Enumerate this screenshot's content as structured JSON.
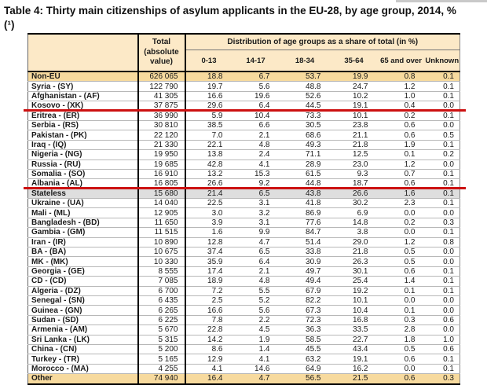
{
  "page": {
    "title_line1": "Table 4: Thirty main citizenships of asylum applicants in the EU-28, by age group, 2014, %",
    "title_line2": "(¹)"
  },
  "colors": {
    "annotation_red": "#cc1111",
    "header_bg": "#fce9c7",
    "highlight_row_bg": "#f7da9e",
    "stateless_row_bg": "#dedede"
  },
  "table": {
    "header": {
      "total_label_lines": [
        "Total",
        "(absolute",
        "value)"
      ],
      "group_label": "Distribution of age groups as a share of total (in %)",
      "age_columns": [
        "0-13",
        "14-17",
        "18-34",
        "35-64",
        "65 and over",
        "Unknown"
      ]
    },
    "rows": [
      {
        "name": "Non-EU",
        "total": "626 065",
        "values": [
          "18.8",
          "6.7",
          "53.7",
          "19.9",
          "0.8",
          "0.1"
        ],
        "hl": "beige"
      },
      {
        "name": "Syria - (SY)",
        "total": "122 790",
        "values": [
          "19.7",
          "5.6",
          "48.8",
          "24.7",
          "1.2",
          "0.1"
        ]
      },
      {
        "name": "Afghanistan - (AF)",
        "total": "41 305",
        "values": [
          "16.6",
          "19.6",
          "52.6",
          "10.2",
          "1.0",
          "0.1"
        ]
      },
      {
        "name": "Kosovo - (XK)",
        "total": "37 875",
        "values": [
          "29.6",
          "6.4",
          "44.5",
          "19.1",
          "0.4",
          "0.0"
        ],
        "underline": true
      },
      {
        "name": "Eritrea - (ER)",
        "total": "36 990",
        "values": [
          "5.9",
          "10.4",
          "73.3",
          "10.1",
          "0.2",
          "0.1"
        ]
      },
      {
        "name": "Serbia - (RS)",
        "total": "30 810",
        "values": [
          "38.5",
          "6.6",
          "30.5",
          "23.8",
          "0.6",
          "0.0"
        ]
      },
      {
        "name": "Pakistan - (PK)",
        "total": "22 120",
        "values": [
          "7.0",
          "2.1",
          "68.6",
          "21.1",
          "0.6",
          "0.5"
        ]
      },
      {
        "name": "Iraq - (IQ)",
        "total": "21 330",
        "values": [
          "22.1",
          "4.8",
          "49.3",
          "21.8",
          "1.9",
          "0.1"
        ]
      },
      {
        "name": "Nigeria - (NG)",
        "total": "19 950",
        "values": [
          "13.8",
          "2.4",
          "71.1",
          "12.5",
          "0.1",
          "0.2"
        ]
      },
      {
        "name": "Russia - (RU)",
        "total": "19 685",
        "values": [
          "42.8",
          "4.1",
          "28.9",
          "23.0",
          "1.2",
          "0.0"
        ]
      },
      {
        "name": "Somalia - (SO)",
        "total": "16 910",
        "values": [
          "13.2",
          "15.3",
          "61.5",
          "9.3",
          "0.7",
          "0.1"
        ]
      },
      {
        "name": "Albania - (AL)",
        "total": "16 805",
        "values": [
          "26.6",
          "9.2",
          "44.8",
          "18.7",
          "0.6",
          "0.1"
        ],
        "underline": true
      },
      {
        "name": "Stateless",
        "total": "15 680",
        "values": [
          "21.4",
          "6.5",
          "43.8",
          "26.6",
          "1.6",
          "0.1"
        ],
        "hl": "grey"
      },
      {
        "name": "Ukraine - (UA)",
        "total": "14 040",
        "values": [
          "22.5",
          "3.1",
          "41.8",
          "30.2",
          "2.3",
          "0.1"
        ]
      },
      {
        "name": "Mali - (ML)",
        "total": "12 905",
        "values": [
          "3.0",
          "3.2",
          "86.9",
          "6.9",
          "0.0",
          "0.0"
        ]
      },
      {
        "name": "Bangladesh - (BD)",
        "total": "11 650",
        "values": [
          "3.9",
          "3.1",
          "77.6",
          "14.8",
          "0.2",
          "0.3"
        ]
      },
      {
        "name": "Gambia - (GM)",
        "total": "11 515",
        "values": [
          "1.6",
          "9.9",
          "84.7",
          "3.8",
          "0.0",
          "0.1"
        ]
      },
      {
        "name": "Iran - (IR)",
        "total": "10 890",
        "values": [
          "12.8",
          "4.7",
          "51.4",
          "29.0",
          "1.2",
          "0.8"
        ]
      },
      {
        "name": "BA - (BA)",
        "total": "10 675",
        "values": [
          "37.4",
          "6.5",
          "33.8",
          "21.8",
          "0.5",
          "0.0"
        ]
      },
      {
        "name": "MK - (MK)",
        "total": "10 330",
        "values": [
          "35.9",
          "6.4",
          "30.9",
          "26.3",
          "0.5",
          "0.0"
        ]
      },
      {
        "name": "Georgia - (GE)",
        "total": "8 555",
        "values": [
          "17.4",
          "2.1",
          "49.7",
          "30.1",
          "0.6",
          "0.1"
        ]
      },
      {
        "name": "CD - (CD)",
        "total": "7 085",
        "values": [
          "18.9",
          "4.8",
          "49.4",
          "25.4",
          "1.4",
          "0.1"
        ]
      },
      {
        "name": "Algeria - (DZ)",
        "total": "6 700",
        "values": [
          "7.2",
          "5.5",
          "67.9",
          "19.2",
          "0.1",
          "0.1"
        ]
      },
      {
        "name": "Senegal - (SN)",
        "total": "6 435",
        "values": [
          "2.5",
          "5.2",
          "82.2",
          "10.1",
          "0.0",
          "0.0"
        ]
      },
      {
        "name": "Guinea - (GN)",
        "total": "6 265",
        "values": [
          "16.6",
          "5.6",
          "67.3",
          "10.4",
          "0.1",
          "0.0"
        ]
      },
      {
        "name": "Sudan - (SD)",
        "total": "6 225",
        "values": [
          "7.8",
          "2.2",
          "72.3",
          "16.8",
          "0.3",
          "0.6"
        ]
      },
      {
        "name": "Armenia - (AM)",
        "total": "5 670",
        "values": [
          "22.8",
          "4.5",
          "36.3",
          "33.5",
          "2.8",
          "0.0"
        ]
      },
      {
        "name": "Sri Lanka - (LK)",
        "total": "5 315",
        "values": [
          "14.2",
          "1.9",
          "58.5",
          "22.7",
          "1.8",
          "1.0"
        ]
      },
      {
        "name": "China - (CN)",
        "total": "5 200",
        "values": [
          "8.6",
          "1.4",
          "45.5",
          "43.4",
          "0.5",
          "0.6"
        ]
      },
      {
        "name": "Turkey - (TR)",
        "total": "5 165",
        "values": [
          "12.9",
          "4.1",
          "63.2",
          "19.1",
          "0.6",
          "0.1"
        ]
      },
      {
        "name": "Morocco - (MA)",
        "total": "4 255",
        "values": [
          "4.1",
          "14.6",
          "64.9",
          "16.2",
          "0.0",
          "0.1"
        ]
      },
      {
        "name": "Other",
        "total": "74 940",
        "values": [
          "16.4",
          "4.7",
          "56.5",
          "21.5",
          "0.6",
          "0.3"
        ],
        "hl": "beige",
        "other": true
      }
    ]
  }
}
